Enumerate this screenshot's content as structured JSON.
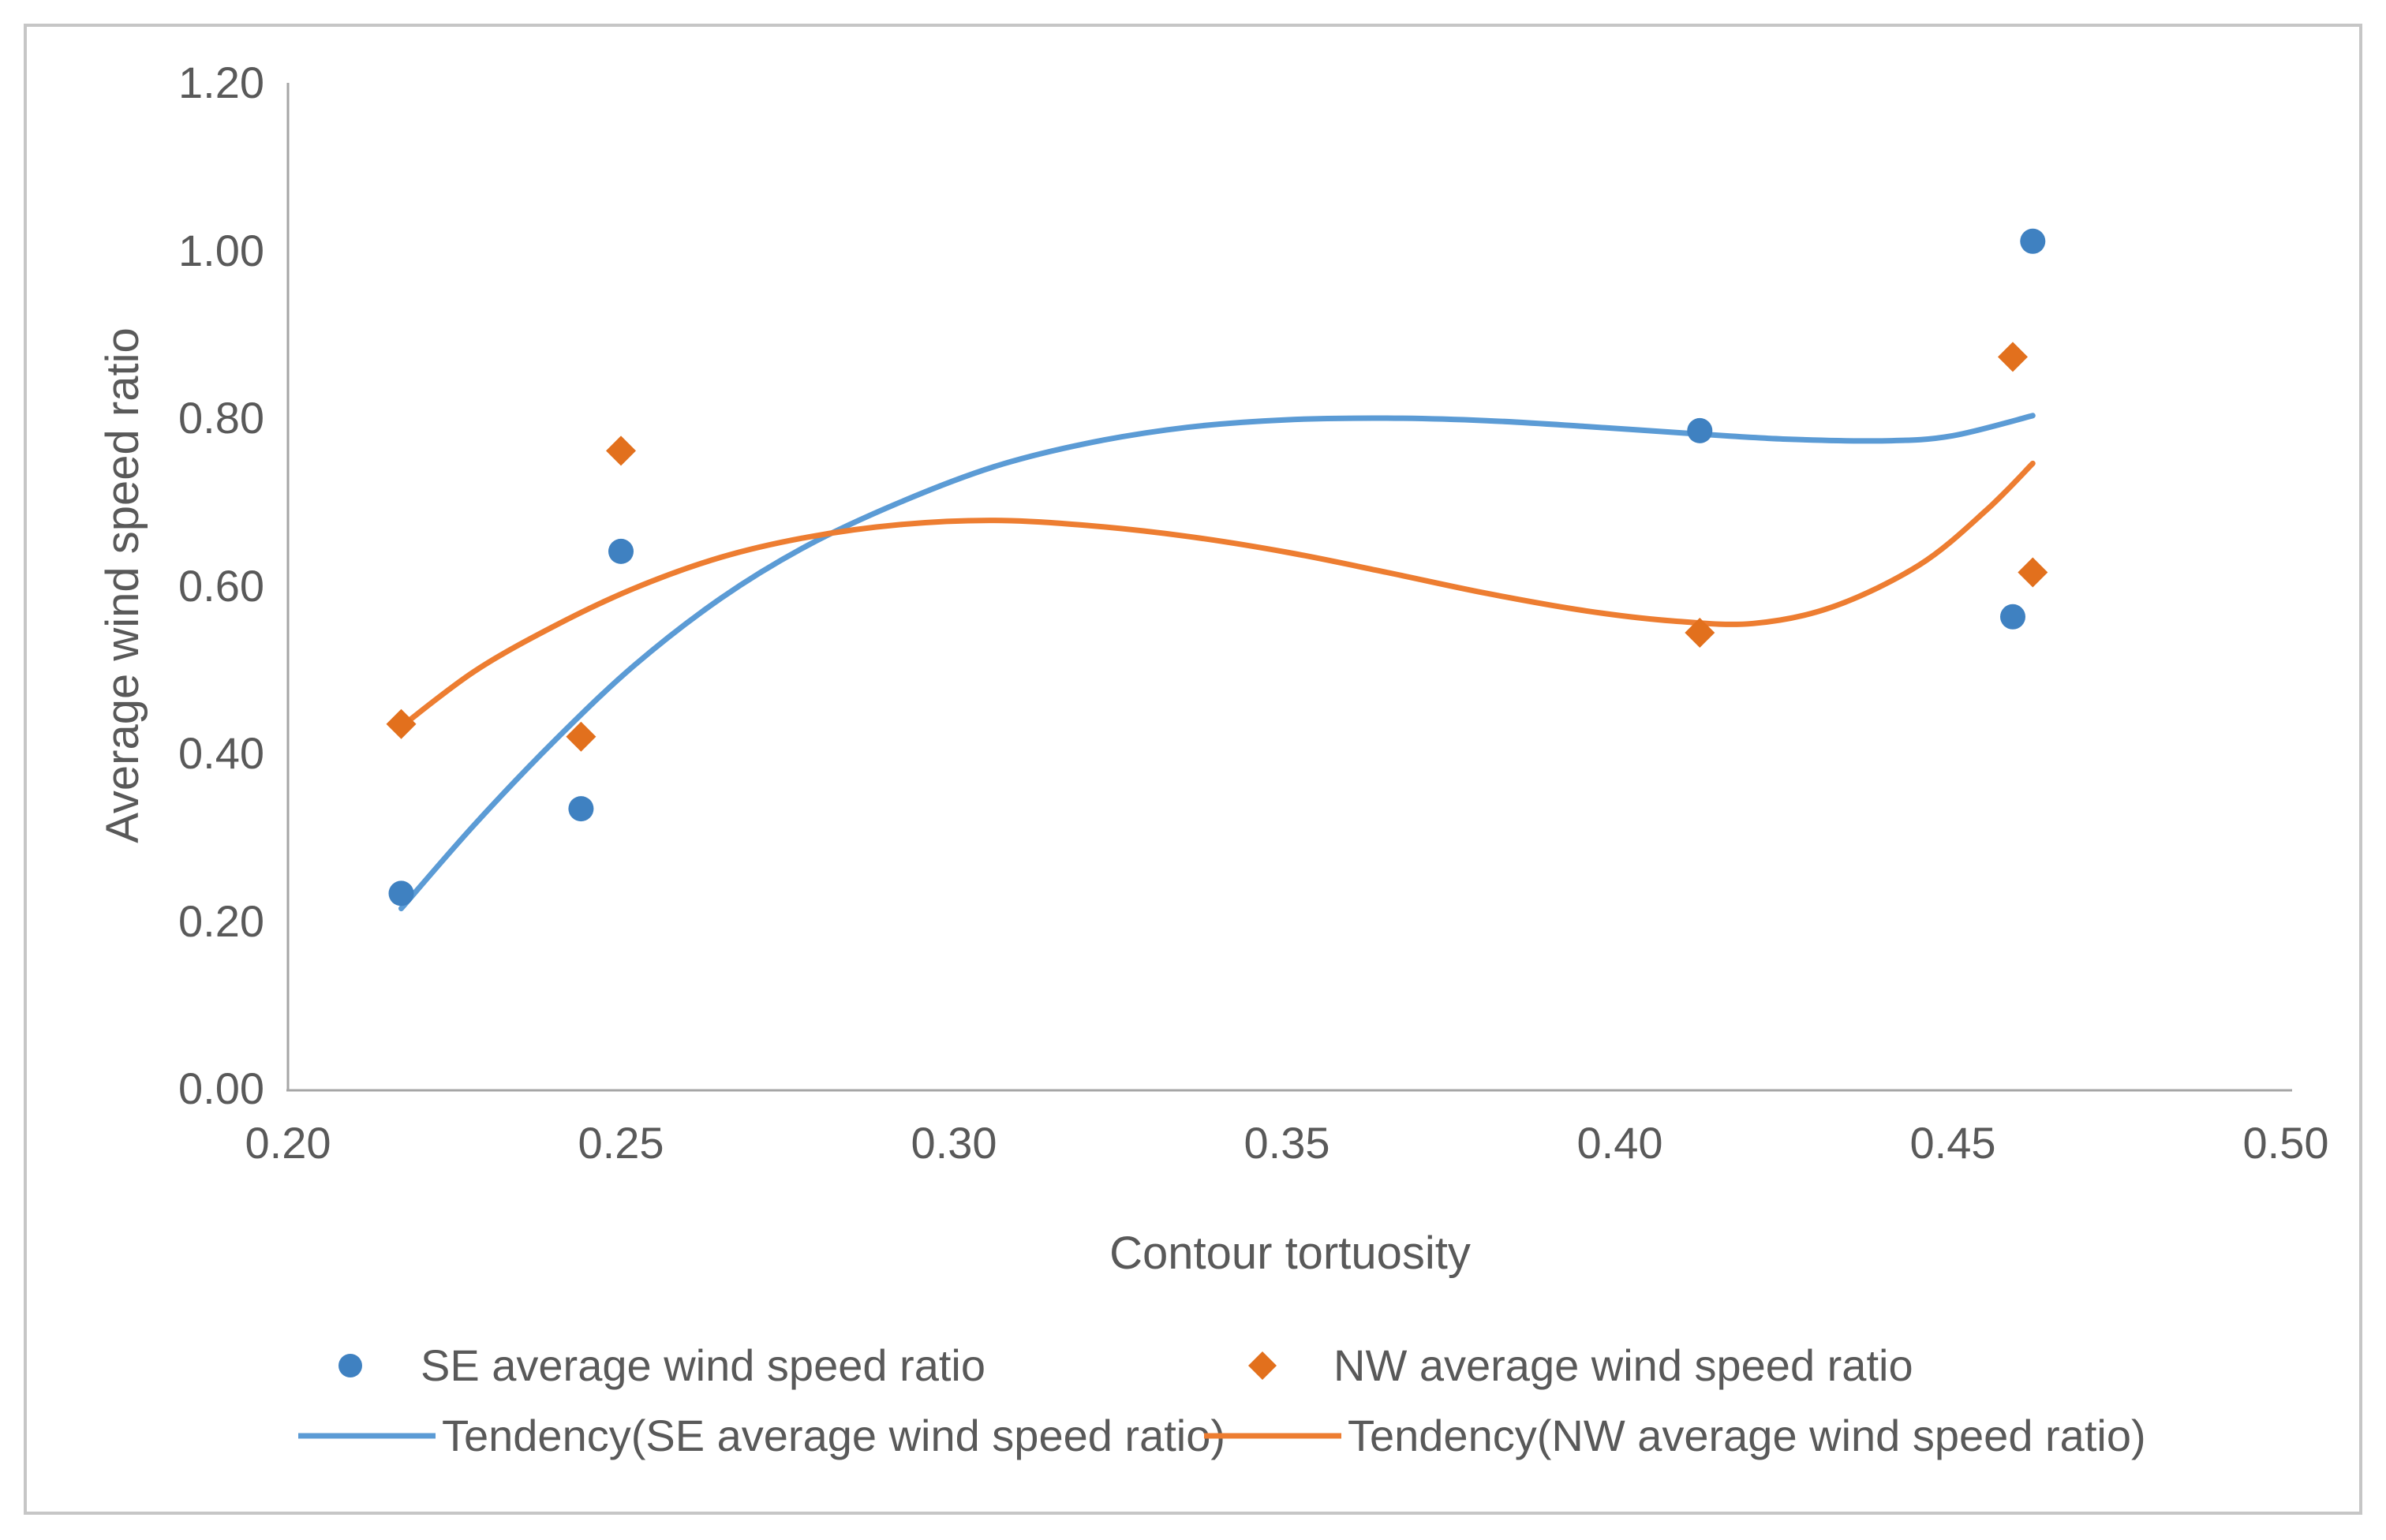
{
  "figure": {
    "background": "#ffffff",
    "frame_color": "#c6c6c6",
    "axis_line_color": "#a6a6a6",
    "text_color": "#595959"
  },
  "chart_data": {
    "type": "scatter",
    "title": "",
    "xlabel": "Contour tortuosity",
    "ylabel": "Average wind speed ratio",
    "xlim": [
      0.2,
      0.5
    ],
    "ylim": [
      0.0,
      1.2
    ],
    "x_tick_labels": [
      "0.20",
      "0.25",
      "0.30",
      "0.35",
      "0.40",
      "0.45",
      "0.50"
    ],
    "y_tick_labels": [
      "0.00",
      "0.20",
      "0.40",
      "0.60",
      "0.80",
      "1.00",
      "1.20"
    ],
    "grid": false,
    "legend_position": "bottom",
    "series": [
      {
        "name": "SE average wind speed ratio",
        "kind": "scatter",
        "marker": "circle",
        "color": "#3f81c1",
        "points": [
          [
            0.217,
            0.233
          ],
          [
            0.244,
            0.334
          ],
          [
            0.25,
            0.641
          ],
          [
            0.412,
            0.785
          ],
          [
            0.459,
            0.563
          ],
          [
            0.462,
            1.011
          ]
        ]
      },
      {
        "name": "NW average wind speed ratio",
        "kind": "scatter",
        "marker": "diamond",
        "color": "#e2701d",
        "points": [
          [
            0.217,
            0.435
          ],
          [
            0.244,
            0.42
          ],
          [
            0.25,
            0.761
          ],
          [
            0.412,
            0.544
          ],
          [
            0.459,
            0.873
          ],
          [
            0.462,
            0.616
          ]
        ]
      },
      {
        "name": "Tendency(SE average wind speed ratio)",
        "kind": "trendline",
        "color": "#5b9bd5",
        "points": [
          [
            0.217,
            0.215
          ],
          [
            0.228,
            0.315
          ],
          [
            0.24,
            0.415
          ],
          [
            0.252,
            0.505
          ],
          [
            0.265,
            0.585
          ],
          [
            0.278,
            0.648
          ],
          [
            0.292,
            0.7
          ],
          [
            0.306,
            0.742
          ],
          [
            0.32,
            0.77
          ],
          [
            0.335,
            0.789
          ],
          [
            0.35,
            0.798
          ],
          [
            0.365,
            0.8
          ],
          [
            0.38,
            0.797
          ],
          [
            0.395,
            0.79
          ],
          [
            0.41,
            0.782
          ],
          [
            0.425,
            0.775
          ],
          [
            0.44,
            0.773
          ],
          [
            0.45,
            0.779
          ],
          [
            0.462,
            0.803
          ]
        ]
      },
      {
        "name": "Tendency(NW average wind speed ratio)",
        "kind": "trendline",
        "color": "#ed7d31",
        "points": [
          [
            0.217,
            0.432
          ],
          [
            0.228,
            0.498
          ],
          [
            0.24,
            0.552
          ],
          [
            0.252,
            0.597
          ],
          [
            0.265,
            0.634
          ],
          [
            0.278,
            0.658
          ],
          [
            0.292,
            0.673
          ],
          [
            0.306,
            0.678
          ],
          [
            0.32,
            0.672
          ],
          [
            0.335,
            0.659
          ],
          [
            0.35,
            0.64
          ],
          [
            0.365,
            0.616
          ],
          [
            0.38,
            0.591
          ],
          [
            0.395,
            0.57
          ],
          [
            0.408,
            0.558
          ],
          [
            0.42,
            0.555
          ],
          [
            0.432,
            0.575
          ],
          [
            0.445,
            0.625
          ],
          [
            0.455,
            0.69
          ],
          [
            0.462,
            0.746
          ]
        ]
      }
    ]
  }
}
